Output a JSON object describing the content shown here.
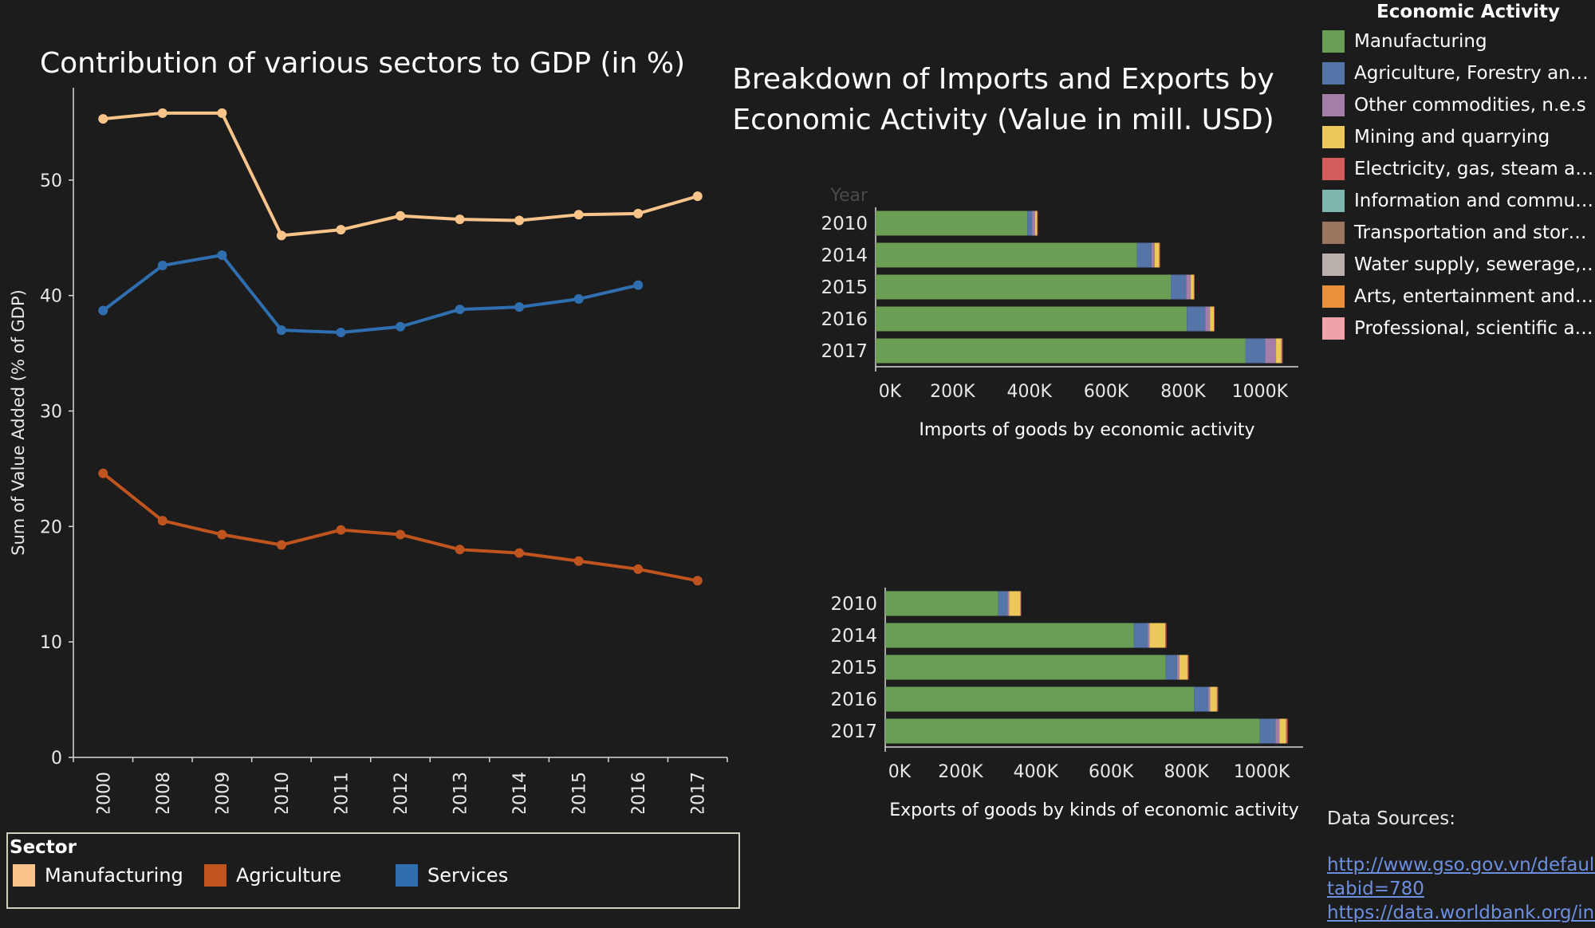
{
  "left_chart": {
    "title": "Contribution of various sectors to GDP (in %)"
  },
  "right_chart": {
    "title_line1": "Breakdown of Imports and Exports by",
    "title_line2": "Economic Activity (Value in mill. USD)"
  },
  "sector_legend": {
    "title": "Sector",
    "items": [
      {
        "label": "Manufacturing",
        "color": "#f9c48a"
      },
      {
        "label": "Agriculture",
        "color": "#c0541f"
      },
      {
        "label": "Services",
        "color": "#2f6eaf"
      }
    ]
  },
  "activity_legend": {
    "title": "Economic Activity",
    "items": [
      {
        "label": "Manufacturing",
        "color": "#6a9e55"
      },
      {
        "label": "Agriculture, Forestry an…",
        "color": "#5575a8"
      },
      {
        "label": "Other commodities, n.e.s",
        "color": "#a47ea6"
      },
      {
        "label": "Mining and quarrying",
        "color": "#ecc75a"
      },
      {
        "label": "Electricity, gas, steam a…",
        "color": "#d25c5c"
      },
      {
        "label": "Information and commu…",
        "color": "#7fb7ae"
      },
      {
        "label": "Transportation and stor…",
        "color": "#9c7560"
      },
      {
        "label": "Water supply, sewerage,…",
        "color": "#bab0ac"
      },
      {
        "label": "Arts, entertainment and…",
        "color": "#e8913a"
      },
      {
        "label": "Professional, scientific a…",
        "color": "#f1a2a9"
      }
    ]
  },
  "data_sources": {
    "title": "Data Sources:",
    "links": [
      "http://www.gso.gov.vn/default_",
      "tabid=780",
      "https://data.worldbank.org/ind"
    ]
  },
  "chart_data": [
    {
      "type": "line",
      "title": "Contribution of various sectors to GDP (in %)",
      "ylabel": "Sum of Value Added (% of GDP)",
      "xlabel": "",
      "categories": [
        "2000",
        "2008",
        "2009",
        "2010",
        "2011",
        "2012",
        "2013",
        "2014",
        "2015",
        "2016",
        "2017"
      ],
      "ylim": [
        0,
        58
      ],
      "yticks": [
        0,
        10,
        20,
        30,
        40,
        50
      ],
      "grid": false,
      "legend": "bottom-left",
      "series": [
        {
          "name": "Manufacturing",
          "color": "#f9c48a",
          "values": [
            55.3,
            55.8,
            55.8,
            45.2,
            45.7,
            46.9,
            46.6,
            46.5,
            47.0,
            47.1,
            48.6
          ]
        },
        {
          "name": "Agriculture",
          "color": "#c0541f",
          "values": [
            24.6,
            20.5,
            19.3,
            18.4,
            19.7,
            19.3,
            18.0,
            17.7,
            17.0,
            16.3,
            15.3
          ]
        },
        {
          "name": "Services",
          "color": "#2f6eaf",
          "values": [
            38.7,
            42.6,
            43.5,
            37.0,
            36.8,
            37.3,
            38.8,
            39.0,
            39.7,
            40.9,
            null
          ]
        }
      ]
    },
    {
      "type": "bar",
      "orientation": "horizontal",
      "stacked": true,
      "xlabel": "Imports of goods by economic activity",
      "ylabel": "Year",
      "categories": [
        "2010",
        "2014",
        "2015",
        "2016",
        "2017"
      ],
      "xlim": [
        0,
        1100000
      ],
      "xticks": [
        "0K",
        "200K",
        "400K",
        "600K",
        "800K",
        "1000K"
      ],
      "xtick_values": [
        0,
        200000,
        400000,
        600000,
        800000,
        1000000
      ],
      "series": [
        {
          "name": "Manufacturing",
          "color": "#6a9e55",
          "values": [
            395000,
            680000,
            768000,
            810000,
            962000
          ]
        },
        {
          "name": "Agriculture, Forestry an…",
          "color": "#5575a8",
          "values": [
            12000,
            38000,
            40000,
            48000,
            52000
          ]
        },
        {
          "name": "Other commodities, n.e.s",
          "color": "#a47ea6",
          "values": [
            8000,
            8000,
            12000,
            12000,
            28000
          ]
        },
        {
          "name": "Mining and quarrying",
          "color": "#ecc75a",
          "values": [
            5000,
            12000,
            8000,
            10000,
            14000
          ]
        },
        {
          "name": "Electricity, gas, steam a…",
          "color": "#d25c5c",
          "values": [
            2000,
            2000,
            2000,
            2000,
            3000
          ]
        }
      ]
    },
    {
      "type": "bar",
      "orientation": "horizontal",
      "stacked": true,
      "xlabel": "Exports of goods by kinds of economic activity",
      "ylabel": "",
      "categories": [
        "2010",
        "2014",
        "2015",
        "2016",
        "2017"
      ],
      "xlim": [
        0,
        1110000
      ],
      "xticks": [
        "0K",
        "200K",
        "400K",
        "600K",
        "800K",
        "1000K"
      ],
      "xtick_values": [
        0,
        200000,
        400000,
        600000,
        800000,
        1000000
      ],
      "series": [
        {
          "name": "Manufacturing",
          "color": "#6a9e55",
          "values": [
            300000,
            660000,
            745000,
            820000,
            995000
          ]
        },
        {
          "name": "Agriculture, Forestry an…",
          "color": "#5575a8",
          "values": [
            25000,
            38000,
            30000,
            38000,
            42000
          ]
        },
        {
          "name": "Other commodities, n.e.s",
          "color": "#a47ea6",
          "values": [
            4000,
            4000,
            6000,
            5000,
            10000
          ]
        },
        {
          "name": "Mining and quarrying",
          "color": "#ecc75a",
          "values": [
            30000,
            42000,
            22000,
            18000,
            18000
          ]
        },
        {
          "name": "Electricity, gas, steam a…",
          "color": "#d25c5c",
          "values": [
            2000,
            3000,
            3000,
            3000,
            4000
          ]
        }
      ]
    }
  ]
}
